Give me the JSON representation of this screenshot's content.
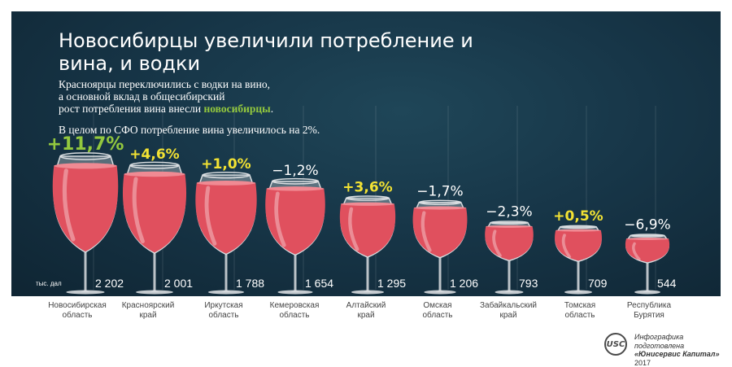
{
  "title": "Новосибирцы увеличили потребление и вина, и водки",
  "subtitle": {
    "line1": "Красноярцы переключились с водки на вино,",
    "line2": "а основной вклад в общесибирский",
    "line3_prefix": "рост потребления вина внесли ",
    "line3_highlight": "новосибирцы",
    "line3_suffix": "."
  },
  "note": "В целом по СФО потребление вина увеличилось на 2%.",
  "colors": {
    "background": "#173648",
    "wine": "#e0505e",
    "glass": "#d9dde0",
    "positive_change": "#f2e233",
    "lead_change": "#93c83e",
    "negative_change": "#ffffff",
    "highlight": "#93c83e"
  },
  "credit": {
    "logo_text": "USC",
    "line1": "Инфографика подготовлена",
    "line2": "«Юнисервис Капитал»",
    "line3": "2017"
  },
  "chart_data": {
    "type": "bar",
    "unit_label": "тыс. дал",
    "categories": [
      "Новосибирская область",
      "Красноярский край",
      "Иркутская область",
      "Кемеровская область",
      "Алтайский край",
      "Омская область",
      "Забайкальский край",
      "Томская область",
      "Республика Бурятия"
    ],
    "category_lines": [
      [
        "Новосибирская",
        "область"
      ],
      [
        "Красноярский",
        "край"
      ],
      [
        "Иркутская",
        "область"
      ],
      [
        "Кемеровская",
        "область"
      ],
      [
        "Алтайский",
        "край"
      ],
      [
        "Омская",
        "область"
      ],
      [
        "Забайкальский",
        "край"
      ],
      [
        "Томская",
        "область"
      ],
      [
        "Республика",
        "Бурятия"
      ]
    ],
    "values": [
      2202,
      2001,
      1788,
      1654,
      1295,
      1206,
      793,
      709,
      544
    ],
    "value_labels": [
      "2 202",
      "2 001",
      "1 788",
      "1 654",
      "1 295",
      "1 206",
      "793",
      "709",
      "544"
    ],
    "change_labels": [
      "+11,7%",
      "+4,6%",
      "+1,0%",
      "−1,2%",
      "+3,6%",
      "−1,7%",
      "−2,3%",
      "+0,5%",
      "−6,9%"
    ],
    "change_values": [
      11.7,
      4.6,
      1.0,
      -1.2,
      3.6,
      -1.7,
      -2.3,
      0.5,
      -6.9
    ]
  }
}
